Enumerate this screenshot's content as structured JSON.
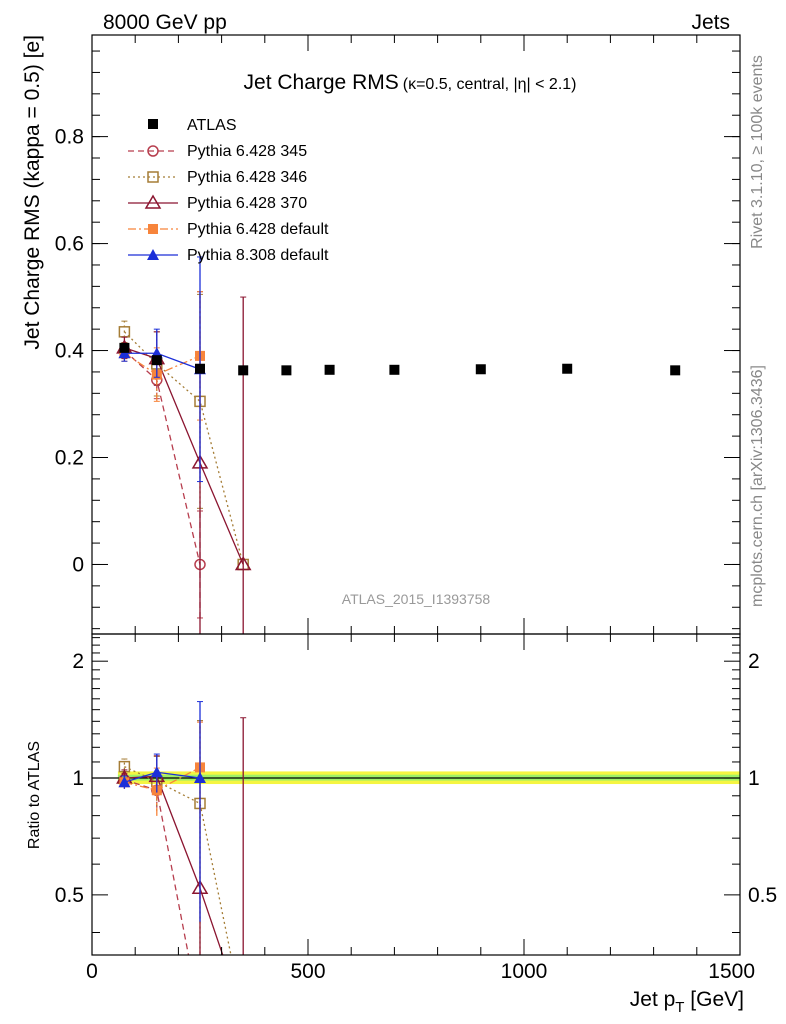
{
  "header": {
    "left": "8000 GeV pp",
    "right": "Jets"
  },
  "side_labels": {
    "rivet": "Rivet 3.1.10, ≥ 100k events",
    "mcplots": "mcplots.cern.ch [arXiv:1306.3436]"
  },
  "watermark": "ATLAS_2015_I1393758",
  "chart_data": [
    {
      "type": "scatter",
      "title": "Jet Charge RMS",
      "subtitle": "(κ=0.5, central, |η| < 2.1)",
      "ylabel": "Jet Charge RMS (kappa = 0.5) [e]",
      "xlabel": "",
      "xlim": [
        0,
        1500
      ],
      "ylim": [
        -0.13,
        0.99
      ],
      "yticks": [
        0,
        0.2,
        0.4,
        0.6,
        0.8
      ],
      "ytick_labels": [
        "0",
        "0.2",
        "0.4",
        "0.6",
        "0.8"
      ],
      "legend_position": "top-left",
      "reference": {
        "name": "ATLAS",
        "color": "#000000",
        "marker": "square",
        "x": [
          75,
          150,
          250,
          350,
          450,
          550,
          700,
          900,
          1100,
          1350
        ],
        "y": [
          0.405,
          0.382,
          0.366,
          0.363,
          0.363,
          0.364,
          0.364,
          0.365,
          0.366,
          0.363
        ]
      },
      "series": [
        {
          "name": "Pythia 6.428 345",
          "color": "#b73e4e",
          "dash": "6,4",
          "marker": "circle-open",
          "x": [
            75,
            150,
            250
          ],
          "y": [
            0.4,
            0.345,
            0.0
          ],
          "err": [
            0.015,
            0.035,
            0.1
          ]
        },
        {
          "name": "Pythia 6.428 346",
          "color": "#a57d36",
          "dash": "2,3",
          "marker": "square-open",
          "x": [
            75,
            150,
            250,
            350
          ],
          "y": [
            0.435,
            0.375,
            0.305,
            0.0
          ],
          "err": [
            0.02,
            0.06,
            0.2,
            0.0
          ]
        },
        {
          "name": "Pythia 6.428 370",
          "color": "#8b1530",
          "dash": "",
          "marker": "triangle-open",
          "x": [
            75,
            150,
            250,
            350
          ],
          "y": [
            0.405,
            0.385,
            0.19,
            0.0
          ],
          "err": [
            0.02,
            0.05,
            0.32,
            0.5
          ]
        },
        {
          "name": "Pythia 6.428 default",
          "color": "#f7843b",
          "dash": "8,3,2,3",
          "marker": "square",
          "x": [
            75,
            150,
            250
          ],
          "y": [
            0.395,
            0.355,
            0.39
          ],
          "err": [
            0.015,
            0.05,
            0.12
          ]
        },
        {
          "name": "Pythia 8.308 default",
          "color": "#1c2fd8",
          "dash": "",
          "marker": "triangle",
          "x": [
            75,
            150,
            250
          ],
          "y": [
            0.395,
            0.395,
            0.365
          ],
          "err": [
            0.015,
            0.045,
            0.21
          ]
        }
      ]
    },
    {
      "type": "line",
      "title": "",
      "ylabel": "Ratio to ATLAS",
      "xlabel": "Jet p_T [GeV]",
      "xlim": [
        0,
        1500
      ],
      "ylim": [
        0.35,
        2.35
      ],
      "log_y": true,
      "yticks": [
        0.5,
        1,
        2
      ],
      "ytick_labels": [
        "0.5",
        "1",
        "2"
      ],
      "xticks": [
        0,
        500,
        1000,
        1500
      ],
      "xtick_labels": [
        "0",
        "500",
        "1000",
        "1500"
      ],
      "reference_band": {
        "value": 1,
        "color": "#f5f542",
        "inner_color": "#9ef067"
      },
      "series": [
        {
          "name": "Pythia 6.428 345",
          "color": "#b73e4e",
          "x": [
            75,
            150,
            250
          ],
          "y": [
            0.99,
            0.93,
            0.0
          ]
        },
        {
          "name": "Pythia 6.428 346",
          "color": "#a57d36",
          "x": [
            75,
            150,
            250,
            350
          ],
          "y": [
            1.07,
            0.98,
            0.86,
            0.0
          ]
        },
        {
          "name": "Pythia 6.428 370",
          "color": "#8b1530",
          "x": [
            75,
            150,
            250,
            350
          ],
          "y": [
            1.0,
            1.01,
            0.52,
            0.0
          ]
        },
        {
          "name": "Pythia 6.428 default",
          "color": "#f7843b",
          "x": [
            75,
            150,
            250
          ],
          "y": [
            0.975,
            0.93,
            1.065
          ]
        },
        {
          "name": "Pythia 8.308 default",
          "color": "#1c2fd8",
          "x": [
            75,
            150,
            250
          ],
          "y": [
            0.975,
            1.035,
            1.0
          ]
        }
      ]
    }
  ]
}
